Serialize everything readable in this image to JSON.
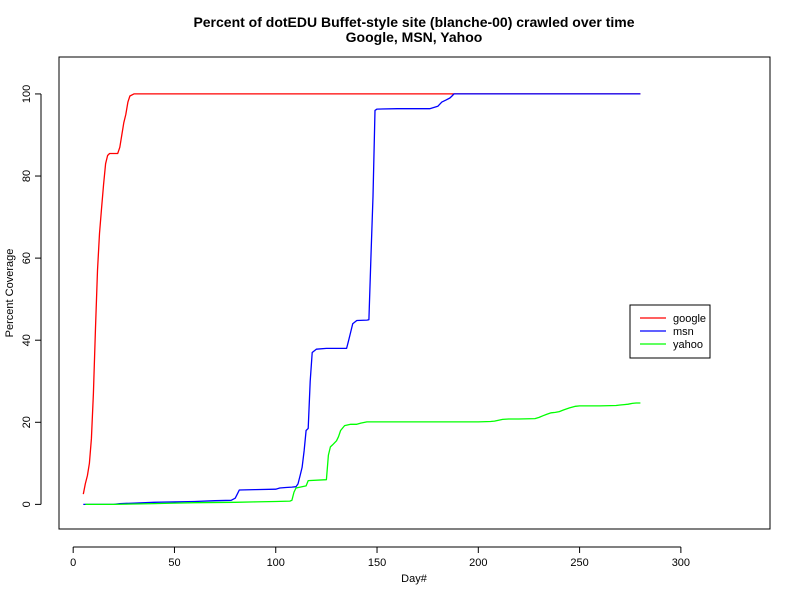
{
  "chart_data": {
    "type": "line",
    "title": "Percent of dotEDU Buffet-style site (blanche-00) crawled over time",
    "subtitle": "Google, MSN, Yahoo",
    "xlabel": "Day#",
    "ylabel": "Percent Coverage",
    "xlim": [
      -7,
      344
    ],
    "ylim": [
      -6,
      109
    ],
    "xticks": [
      0,
      50,
      100,
      150,
      200,
      250,
      300
    ],
    "yticks": [
      0,
      20,
      40,
      60,
      80,
      100
    ],
    "grid": false,
    "legend_position": "right",
    "series": [
      {
        "name": "google",
        "color": "#ff0000",
        "x": [
          5,
          6,
          7,
          8,
          9,
          10,
          11,
          12,
          13,
          14,
          15,
          16,
          17,
          18,
          20,
          22,
          23,
          24,
          25,
          26,
          27,
          28,
          30,
          35,
          50,
          100,
          150,
          200,
          250,
          280
        ],
        "y": [
          2.5,
          5,
          7,
          10,
          16,
          27,
          43,
          57,
          66,
          72,
          78,
          83,
          85,
          85.5,
          85.5,
          85.5,
          87,
          90,
          93,
          95,
          98,
          99.5,
          100,
          100,
          100,
          100,
          100,
          100,
          100,
          100
        ]
      },
      {
        "name": "msn",
        "color": "#0000ff",
        "x": [
          5,
          20,
          23,
          30,
          40,
          50,
          60,
          70,
          78,
          80,
          81,
          82,
          90,
          100,
          102,
          105,
          108,
          110,
          111,
          112,
          113,
          114,
          115,
          116,
          117,
          118,
          120,
          125,
          130,
          135,
          136,
          137,
          138,
          140,
          145,
          146,
          147,
          148,
          149,
          150,
          160,
          170,
          176,
          180,
          182,
          184,
          186,
          187,
          188,
          190,
          200,
          250,
          280
        ],
        "y": [
          0,
          0,
          0.2,
          0.3,
          0.5,
          0.6,
          0.7,
          0.9,
          1,
          1.5,
          2.5,
          3.5,
          3.6,
          3.7,
          4,
          4.1,
          4.2,
          4.3,
          5,
          7,
          9,
          13,
          18,
          18.5,
          30,
          37,
          37.8,
          38,
          38,
          38,
          40,
          42,
          44,
          44.8,
          44.9,
          45,
          60,
          75,
          96,
          96.3,
          96.4,
          96.4,
          96.4,
          97,
          98,
          98.5,
          99,
          99.5,
          100,
          100,
          100,
          100,
          100
        ]
      },
      {
        "name": "yahoo",
        "color": "#00ff00",
        "x": [
          6,
          20,
          30,
          40,
          50,
          60,
          80,
          90,
          100,
          107,
          108,
          109,
          110,
          115,
          116,
          125,
          126,
          127,
          128,
          130,
          131,
          132,
          134,
          137,
          140,
          142,
          145,
          150,
          160,
          180,
          200,
          206,
          208,
          210,
          212,
          215,
          220,
          228,
          230,
          232,
          234,
          236,
          238,
          240,
          242,
          245,
          248,
          250,
          260,
          268,
          270,
          272,
          274,
          276,
          278,
          280
        ],
        "y": [
          0,
          0,
          0.1,
          0.2,
          0.3,
          0.4,
          0.5,
          0.6,
          0.7,
          0.8,
          1,
          3,
          4,
          4.5,
          5.8,
          6,
          12,
          14,
          14.5,
          15.5,
          16.5,
          18,
          19.2,
          19.5,
          19.5,
          19.8,
          20.1,
          20.1,
          20.1,
          20.1,
          20.1,
          20.2,
          20.3,
          20.5,
          20.7,
          20.8,
          20.8,
          20.9,
          21.2,
          21.6,
          22,
          22.3,
          22.4,
          22.6,
          23,
          23.5,
          23.9,
          24,
          24,
          24.1,
          24.2,
          24.3,
          24.4,
          24.6,
          24.7,
          24.7
        ]
      }
    ]
  }
}
